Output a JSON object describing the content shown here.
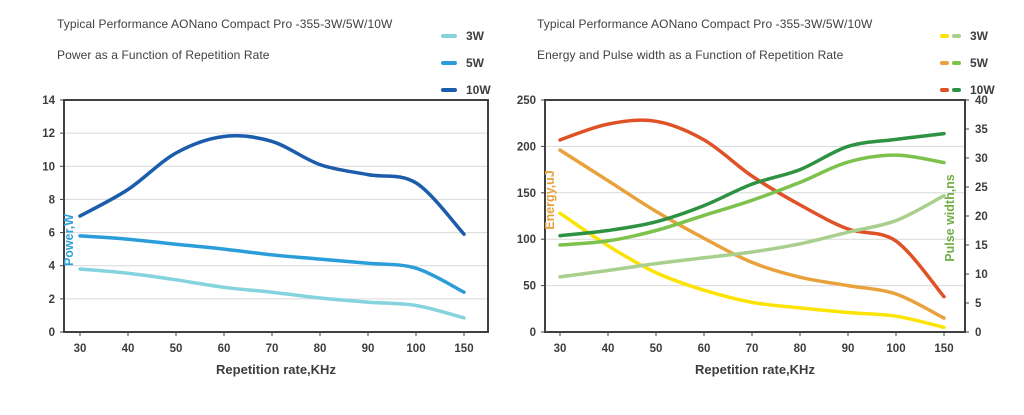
{
  "colors": {
    "text": "#404040",
    "tick_text": "#3d3d3d",
    "grid": "#d9d9d9",
    "plot_border": "#404040",
    "power_axis_label": "#2e9fd9",
    "energy_axis_label": "#e9a13c",
    "pulse_axis_label": "#70ad47",
    "w3_power": "#84d3dd",
    "w5_power": "#2b9dda",
    "w10_power": "#1b5cad",
    "w3_energy": "#fbe303",
    "w5_energy": "#e9a13c",
    "w10_energy": "#df5226",
    "w3_pulse": "#a8cf8e",
    "w5_pulse": "#7cc24d",
    "w10_pulse": "#2f9243"
  },
  "charts": [
    {
      "title": "Typical Performance AONano Compact Pro -355-3W/5W/10W",
      "subtitle": "Power as a Function of Repetition Rate",
      "legend": [
        {
          "label": "3W",
          "swatches": [
            "#84d3dd"
          ]
        },
        {
          "label": "5W",
          "swatches": [
            "#2b9dda"
          ]
        },
        {
          "label": "10W",
          "swatches": [
            "#1b5cad"
          ]
        }
      ]
    },
    {
      "title": "Typical Performance AONano Compact Pro -355-3W/5W/10W",
      "subtitle": "Energy and Pulse width as a Function of Repetition Rate",
      "legend": [
        {
          "label": "3W",
          "swatches": [
            "#fbe303",
            "#a8cf8e"
          ]
        },
        {
          "label": "5W",
          "swatches": [
            "#e9a13c",
            "#7cc24d"
          ]
        },
        {
          "label": "10W",
          "swatches": [
            "#df5226",
            "#2f9243"
          ]
        }
      ]
    }
  ],
  "chart_data": [
    {
      "type": "line",
      "title": "Typical Performance AONano Compact Pro -355-3W/5W/10W",
      "subtitle": "Power as a Function of Repetition Rate",
      "x_axis_type": "categorical",
      "categories": [
        30,
        40,
        50,
        60,
        70,
        80,
        90,
        100,
        150
      ],
      "xlabel": "Repetition rate,KHz",
      "ylabel": "Power,W",
      "ylim": [
        0,
        14
      ],
      "yticks": [
        0,
        2,
        4,
        6,
        8,
        10,
        12,
        14
      ],
      "grid": "horizontal",
      "legend_position": "top-right",
      "series": [
        {
          "name": "3W",
          "axis": "left",
          "color": "#84d3dd",
          "values": [
            3.8,
            3.55,
            3.15,
            2.7,
            2.4,
            2.05,
            1.8,
            1.6,
            0.85
          ]
        },
        {
          "name": "5W",
          "axis": "left",
          "color": "#2b9dda",
          "values": [
            5.8,
            5.6,
            5.3,
            5.0,
            4.65,
            4.4,
            4.15,
            3.85,
            2.4
          ]
        },
        {
          "name": "10W",
          "axis": "left",
          "color": "#1b5cad",
          "values": [
            7.0,
            8.6,
            10.8,
            11.8,
            11.5,
            10.1,
            9.5,
            9.0,
            5.9
          ]
        }
      ]
    },
    {
      "type": "line",
      "title": "Typical Performance AONano Compact Pro -355-3W/5W/10W",
      "subtitle": "Energy and Pulse width as a Function of Repetition Rate",
      "x_axis_type": "categorical",
      "categories": [
        30,
        40,
        50,
        60,
        70,
        80,
        90,
        100,
        150
      ],
      "xlabel": "Repetition rate,KHz",
      "ylabel": "Energy,uJ",
      "ylabel_right": "Pulse width,ns",
      "ylim": [
        0,
        250
      ],
      "yticks": [
        0,
        50,
        100,
        150,
        200,
        250
      ],
      "ylim_right": [
        0,
        40
      ],
      "yticks_right": [
        0,
        5,
        10,
        15,
        20,
        25,
        30,
        35,
        40
      ],
      "grid": "horizontal",
      "legend_position": "top-right",
      "series": [
        {
          "name": "3W Energy",
          "axis": "left",
          "color": "#fbe303",
          "values": [
            128,
            93,
            64,
            45,
            32,
            26,
            21,
            17,
            5
          ]
        },
        {
          "name": "5W Energy",
          "axis": "left",
          "color": "#e9a13c",
          "values": [
            196,
            163,
            130,
            101,
            75,
            59,
            50,
            41,
            15
          ]
        },
        {
          "name": "10W Energy",
          "axis": "left",
          "color": "#df5226",
          "values": [
            207,
            224,
            227,
            207,
            168,
            137,
            111,
            98,
            38
          ]
        },
        {
          "name": "3W Pulse width",
          "axis": "right",
          "color": "#a8cf8e",
          "values": [
            9.5,
            10.6,
            11.8,
            12.8,
            13.8,
            15.2,
            17.2,
            19.2,
            23.5
          ]
        },
        {
          "name": "5W Pulse width",
          "axis": "right",
          "color": "#7cc24d",
          "values": [
            15.0,
            15.7,
            17.5,
            20.1,
            22.7,
            25.8,
            29.3,
            30.5,
            29.2
          ]
        },
        {
          "name": "10W Pulse width",
          "axis": "right",
          "color": "#2f9243",
          "values": [
            16.6,
            17.5,
            19.0,
            21.8,
            25.5,
            28.0,
            32.0,
            33.2,
            34.2
          ]
        }
      ]
    }
  ]
}
